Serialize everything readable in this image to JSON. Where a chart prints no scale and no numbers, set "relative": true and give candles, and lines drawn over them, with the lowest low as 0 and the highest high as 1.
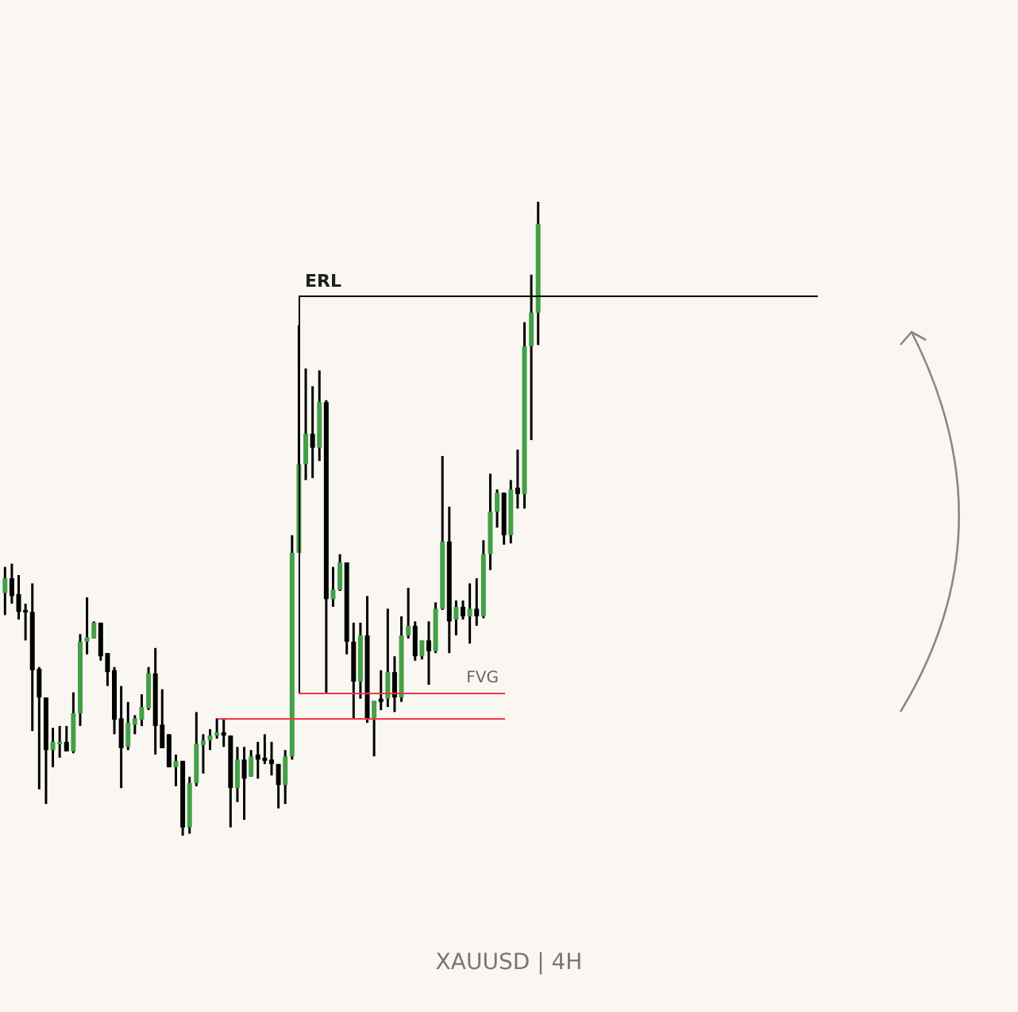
{
  "chart_data": {
    "type": "candlestick",
    "title": "XAUUSD | 4H",
    "relative": true,
    "categories": [
      null,
      null,
      null,
      null,
      null,
      null,
      null,
      null,
      null,
      null,
      null,
      null,
      null,
      null,
      null,
      null,
      null,
      null,
      null,
      null,
      null,
      null,
      null,
      null,
      null,
      null,
      null,
      null,
      null,
      null,
      null,
      null,
      null,
      null,
      null,
      null,
      null,
      null,
      null,
      null,
      null,
      null,
      null,
      null,
      null,
      null,
      null,
      null,
      null,
      null,
      null,
      null,
      null,
      null,
      null,
      null,
      null,
      null,
      null,
      null,
      null,
      null,
      null,
      null,
      null,
      null,
      null,
      null,
      null,
      null,
      null,
      null,
      null,
      null,
      null,
      null,
      null,
      null,
      null
    ],
    "ohlc": [
      [
        0.383,
        0.424,
        0.348,
        0.406
      ],
      [
        0.406,
        0.429,
        0.366,
        0.378
      ],
      [
        0.381,
        0.411,
        0.341,
        0.353
      ],
      [
        0.356,
        0.366,
        0.308,
        0.353
      ],
      [
        0.353,
        0.398,
        0.165,
        0.261
      ],
      [
        0.263,
        0.266,
        0.073,
        0.218
      ],
      [
        0.218,
        0.218,
        0.05,
        0.135
      ],
      [
        0.135,
        0.17,
        0.108,
        0.148
      ],
      [
        0.145,
        0.173,
        0.123,
        0.148
      ],
      [
        0.148,
        0.173,
        0.133,
        0.133
      ],
      [
        0.133,
        0.226,
        0.13,
        0.193
      ],
      [
        0.193,
        0.318,
        0.173,
        0.306
      ],
      [
        0.306,
        0.376,
        0.286,
        0.313
      ],
      [
        0.311,
        0.338,
        0.311,
        0.336
      ],
      [
        0.336,
        0.336,
        0.276,
        0.283
      ],
      [
        0.288,
        0.288,
        0.236,
        0.258
      ],
      [
        0.261,
        0.266,
        0.16,
        0.183
      ],
      [
        0.185,
        0.236,
        0.075,
        0.138
      ],
      [
        0.14,
        0.211,
        0.135,
        0.178
      ],
      [
        0.175,
        0.19,
        0.16,
        0.185
      ],
      [
        0.183,
        0.223,
        0.173,
        0.203
      ],
      [
        0.201,
        0.266,
        0.198,
        0.256
      ],
      [
        0.256,
        0.296,
        0.128,
        0.173
      ],
      [
        0.175,
        0.231,
        0.138,
        0.138
      ],
      [
        0.16,
        0.16,
        0.108,
        0.108
      ],
      [
        0.108,
        0.128,
        0.078,
        0.118
      ],
      [
        0.118,
        0.118,
        0,
        0.013
      ],
      [
        0.013,
        0.093,
        0.003,
        0.083
      ],
      [
        0.083,
        0.195,
        0.078,
        0.145
      ],
      [
        0.143,
        0.16,
        0.098,
        0.15
      ],
      [
        0.15,
        0.168,
        0.135,
        0.158
      ],
      [
        0.158,
        0.185,
        0.153,
        0.163
      ],
      [
        0.163,
        0.185,
        0.14,
        0.158
      ],
      [
        0.158,
        0.158,
        0.013,
        0.075
      ],
      [
        0.075,
        0.14,
        0.053,
        0.12
      ],
      [
        0.12,
        0.14,
        0.025,
        0.09
      ],
      [
        0.093,
        0.135,
        0.093,
        0.125
      ],
      [
        0.128,
        0.148,
        0.09,
        0.12
      ],
      [
        0.123,
        0.16,
        0.113,
        0.118
      ],
      [
        0.12,
        0.148,
        0.095,
        0.113
      ],
      [
        0.113,
        0.113,
        0.043,
        0.08
      ],
      [
        0.08,
        0.135,
        0.05,
        0.125
      ],
      [
        0.125,
        0.474,
        0.12,
        0.446
      ],
      [
        0.446,
        0.805,
        0.446,
        0.586
      ],
      [
        0.586,
        0.737,
        0.561,
        0.634
      ],
      [
        0.634,
        0.709,
        0.564,
        0.612
      ],
      [
        0.612,
        0.734,
        0.591,
        0.684
      ],
      [
        0.684,
        0.687,
        0.223,
        0.373
      ],
      [
        0.373,
        0.424,
        0.361,
        0.388
      ],
      [
        0.388,
        0.444,
        0.386,
        0.431
      ],
      [
        0.431,
        0.431,
        0.286,
        0.306
      ],
      [
        0.306,
        0.336,
        0.183,
        0.243
      ],
      [
        0.243,
        0.336,
        0.216,
        0.316
      ],
      [
        0.316,
        0.378,
        0.178,
        0.183
      ],
      [
        0.183,
        0.213,
        0.125,
        0.213
      ],
      [
        0.216,
        0.261,
        0.198,
        0.211
      ],
      [
        0.216,
        0.358,
        0.203,
        0.258
      ],
      [
        0.258,
        0.283,
        0.195,
        0.218
      ],
      [
        0.218,
        0.346,
        0.211,
        0.316
      ],
      [
        0.316,
        0.391,
        0.311,
        0.331
      ],
      [
        0.331,
        0.338,
        0.276,
        0.283
      ],
      [
        0.283,
        0.308,
        0.278,
        0.308
      ],
      [
        0.308,
        0.338,
        0.238,
        0.291
      ],
      [
        0.291,
        0.368,
        0.288,
        0.358
      ],
      [
        0.358,
        0.599,
        0.356,
        0.464
      ],
      [
        0.464,
        0.519,
        0.288,
        0.338
      ],
      [
        0.341,
        0.371,
        0.316,
        0.361
      ],
      [
        0.361,
        0.371,
        0.341,
        0.346
      ],
      [
        0.346,
        0.398,
        0.303,
        0.358
      ],
      [
        0.358,
        0.406,
        0.331,
        0.346
      ],
      [
        0.346,
        0.466,
        0.343,
        0.444
      ],
      [
        0.444,
        0.571,
        0.419,
        0.511
      ],
      [
        0.511,
        0.546,
        0.486,
        0.541
      ],
      [
        0.541,
        0.541,
        0.459,
        0.474
      ],
      [
        0.474,
        0.561,
        0.461,
        0.546
      ],
      [
        0.549,
        0.609,
        0.516,
        0.539
      ],
      [
        0.539,
        0.81,
        0.516,
        0.772
      ],
      [
        0.772,
        0.885,
        0.624,
        0.825
      ],
      [
        0.825,
        1,
        0.774,
        0.965
      ]
    ],
    "colors": [
      "#43a047",
      "#000000",
      "#000000",
      "#000000",
      "#000000",
      "#000000",
      "#000000",
      "#43a047",
      "#43a047",
      "#000000",
      "#43a047",
      "#43a047",
      "#43a047",
      "#43a047",
      "#000000",
      "#000000",
      "#000000",
      "#000000",
      "#43a047",
      "#43a047",
      "#43a047",
      "#43a047",
      "#000000",
      "#000000",
      "#000000",
      "#43a047",
      "#000000",
      "#43a047",
      "#43a047",
      "#43a047",
      "#43a047",
      "#43a047",
      "#000000",
      "#000000",
      "#43a047",
      "#000000",
      "#43a047",
      "#000000",
      "#000000",
      "#000000",
      "#000000",
      "#43a047",
      "#43a047",
      "#43a047",
      "#43a047",
      "#000000",
      "#43a047",
      "#000000",
      "#43a047",
      "#43a047",
      "#000000",
      "#000000",
      "#43a047",
      "#000000",
      "#43a047",
      "#000000",
      "#43a047",
      "#000000",
      "#43a047",
      "#43a047",
      "#000000",
      "#43a047",
      "#000000",
      "#43a047",
      "#43a047",
      "#000000",
      "#43a047",
      "#000000",
      "#43a047",
      "#000000",
      "#43a047",
      "#43a047",
      "#43a047",
      "#000000",
      "#43a047",
      "#000000",
      "#43a047",
      "#43a047",
      "#43a047"
    ],
    "ref_lines": [
      {
        "axis": "y",
        "value": 0.852,
        "label": "ERL",
        "color": "#000000"
      },
      {
        "axis": "y",
        "value": 0.226,
        "label": "FVG",
        "color": "#f23645"
      },
      {
        "axis": "y",
        "value": 0.185,
        "label": null,
        "color": "#f23645"
      }
    ]
  }
}
